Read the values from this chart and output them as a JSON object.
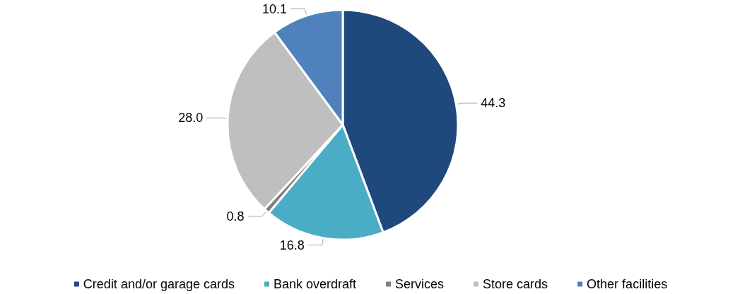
{
  "chart_data": {
    "type": "pie",
    "categories": [
      "Credit and/or garage cards",
      "Bank overdraft",
      "Services",
      "Store cards",
      "Other facilities"
    ],
    "values": [
      44.3,
      16.8,
      0.8,
      28.0,
      10.1
    ],
    "colors": [
      "#1f497d",
      "#4bacc6",
      "#7f7f7f",
      "#bfbfbf",
      "#4f81bd"
    ],
    "value_labels": [
      "44.3",
      "16.8",
      "0.8",
      "28.0",
      "10.1"
    ],
    "legend": "bottom"
  }
}
